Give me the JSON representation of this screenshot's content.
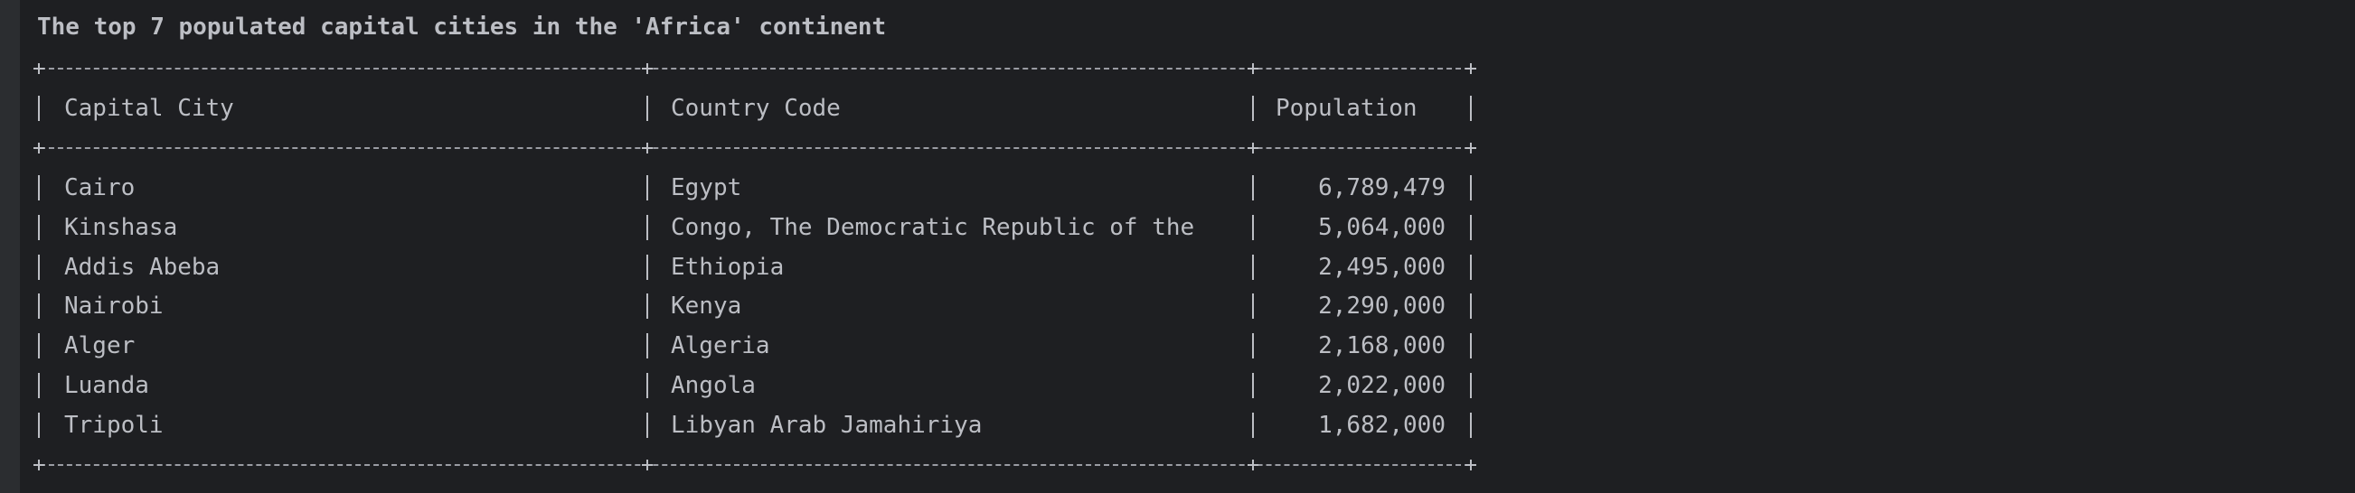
{
  "title": "The top 7 populated capital cities in the 'Africa' continent",
  "table": {
    "header": [
      "Capital City",
      "Country Code",
      "Population"
    ],
    "rows": [
      [
        "Cairo",
        "Egypt",
        "6,789,479"
      ],
      [
        "Kinshasa",
        "Congo, The Democratic Republic of the",
        "5,064,000"
      ],
      [
        "Addis Abeba",
        "Ethiopia",
        "2,495,000"
      ],
      [
        "Nairobi",
        "Kenya",
        "2,290,000"
      ],
      [
        "Alger",
        "Algeria",
        "2,168,000"
      ],
      [
        "Luanda",
        "Angola",
        "2,022,000"
      ],
      [
        "Tripoli",
        "Libyan Arab Jamahiriya",
        "1,682,000"
      ]
    ]
  }
}
